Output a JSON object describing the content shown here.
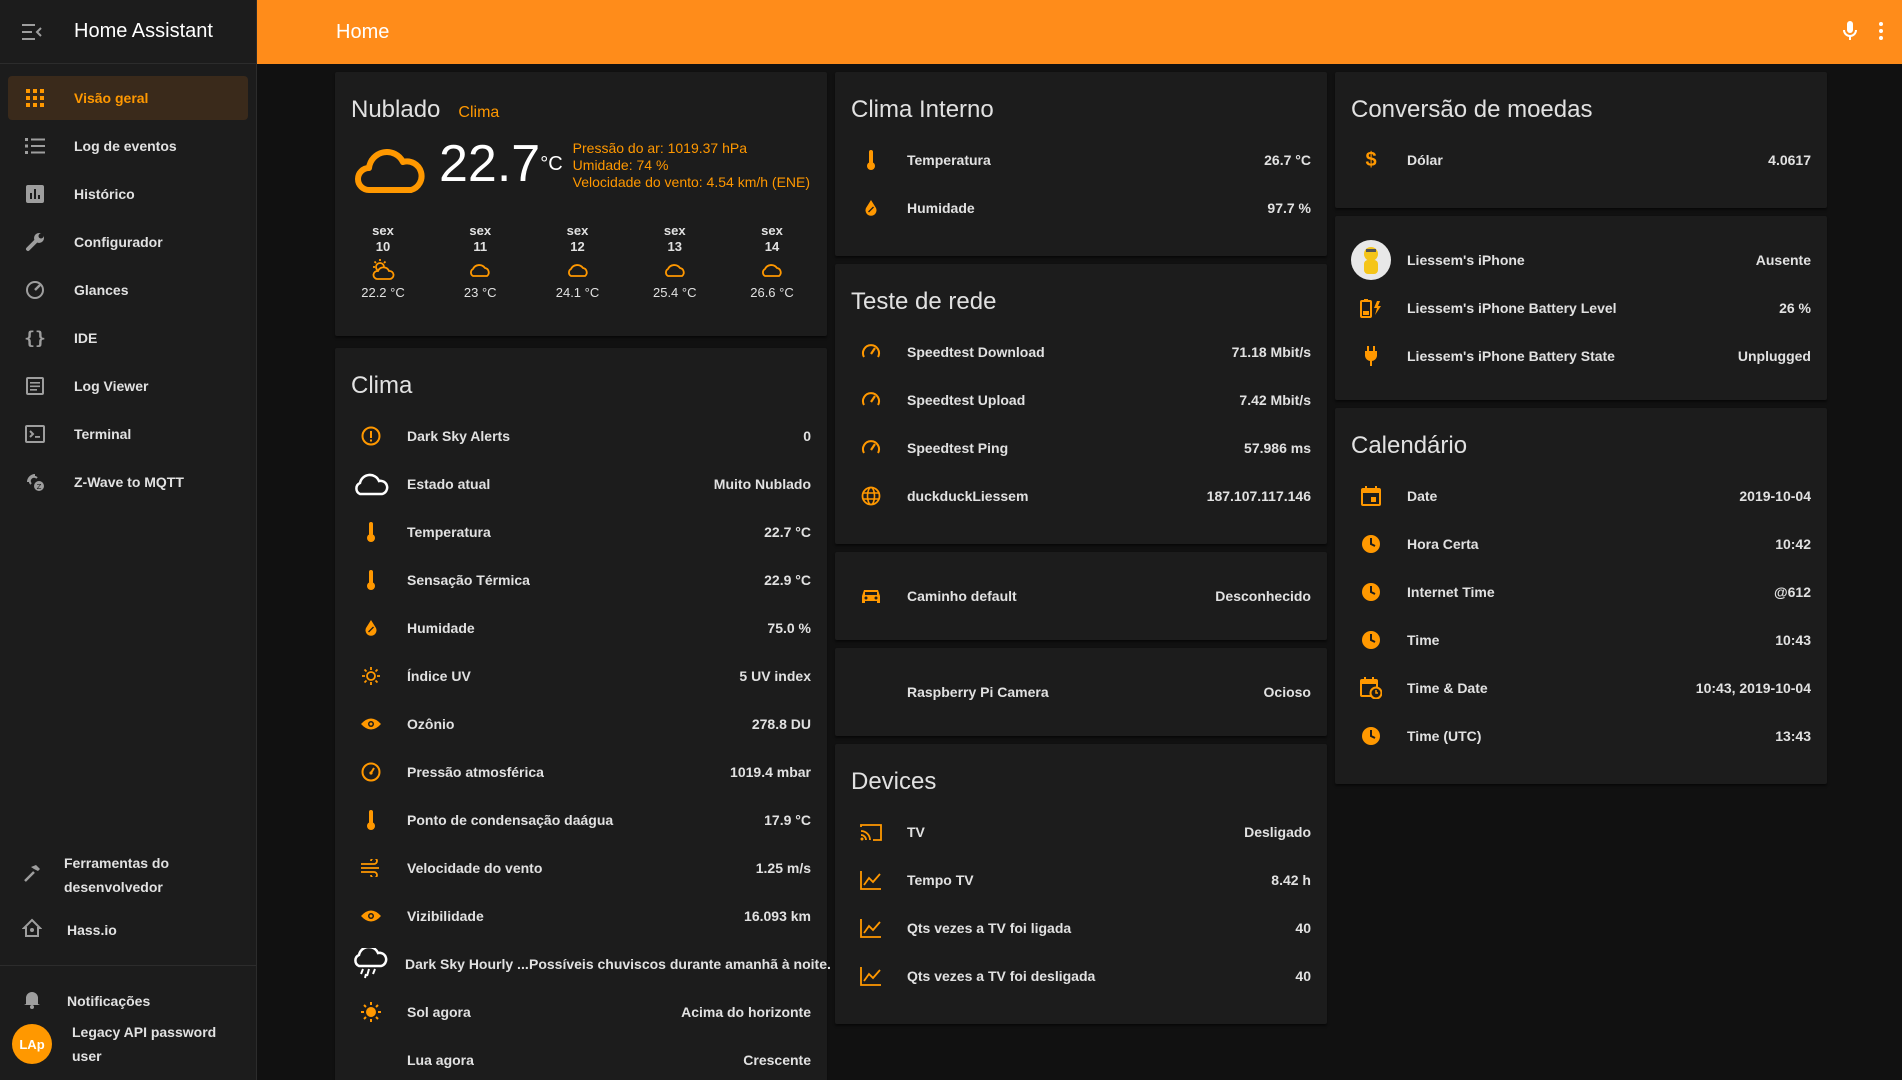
{
  "app": {
    "title": "Home Assistant"
  },
  "topbar": {
    "title": "Home"
  },
  "sidebar": {
    "items": [
      {
        "label": "Visão geral",
        "icon": "view-dashboard-icon"
      },
      {
        "label": "Log de eventos",
        "icon": "format-list-bulleted-icon"
      },
      {
        "label": "Histórico",
        "icon": "chart-box-icon"
      },
      {
        "label": "Configurador",
        "icon": "wrench-icon"
      },
      {
        "label": "Glances",
        "icon": "speedometer-icon"
      },
      {
        "label": "IDE",
        "icon": "code-braces-icon"
      },
      {
        "label": "Log Viewer",
        "icon": "file-document-icon"
      },
      {
        "label": "Terminal",
        "icon": "console-icon"
      },
      {
        "label": "Z-Wave to MQTT",
        "icon": "z-wave-icon"
      }
    ],
    "dev_tools": "Ferramentas do desenvolvedor",
    "hassio": "Hass.io",
    "notifications": "Notificações",
    "user_initials": "LAp",
    "user_name": "Legacy API password user"
  },
  "weather": {
    "condition": "Nublado",
    "name": "Clima",
    "temperature": "22.7",
    "unit": "°C",
    "pressure": "Pressão do ar: 1019.37 hPa",
    "humidity": "Umidade: 74 %",
    "wind": "Velocidade do vento: 4.54 km/h (ENE)",
    "forecast": [
      {
        "day": "sex",
        "date": "10",
        "temp": "22.2 °C",
        "icon": "weather-partly-cloudy-icon"
      },
      {
        "day": "sex",
        "date": "11",
        "temp": "23 °C",
        "icon": "weather-cloudy-icon"
      },
      {
        "day": "sex",
        "date": "12",
        "temp": "24.1 °C",
        "icon": "weather-cloudy-icon"
      },
      {
        "day": "sex",
        "date": "13",
        "temp": "25.4 °C",
        "icon": "weather-cloudy-icon"
      },
      {
        "day": "sex",
        "date": "14",
        "temp": "26.6 °C",
        "icon": "weather-cloudy-icon"
      }
    ]
  },
  "clima": {
    "title": "Clima",
    "rows": [
      {
        "name": "Dark Sky Alerts",
        "value": "0"
      },
      {
        "name": "Estado atual",
        "value": "Muito Nublado"
      },
      {
        "name": "Temperatura",
        "value": "22.7 °C"
      },
      {
        "name": "Sensação Térmica",
        "value": "22.9 °C"
      },
      {
        "name": "Humidade",
        "value": "75.0 %"
      },
      {
        "name": "Índice UV",
        "value": "5 UV index"
      },
      {
        "name": "Ozônio",
        "value": "278.8 DU"
      },
      {
        "name": "Pressão atmosférica",
        "value": "1019.4 mbar"
      },
      {
        "name": "Ponto de condensação daágua",
        "value": "17.9 °C"
      },
      {
        "name": "Velocidade do vento",
        "value": "1.25 m/s"
      },
      {
        "name": "Vizibilidade",
        "value": "16.093 km"
      },
      {
        "name": "Dark Sky Hourly ...",
        "value": "Possíveis chuviscos durante amanhã à noite."
      },
      {
        "name": "Sol agora",
        "value": "Acima do horizonte"
      },
      {
        "name": "Lua agora",
        "value": "Crescente"
      }
    ]
  },
  "clima_interno": {
    "title": "Clima Interno",
    "rows": [
      {
        "name": "Temperatura",
        "value": "26.7 °C"
      },
      {
        "name": "Humidade",
        "value": "97.7 %"
      }
    ]
  },
  "teste_rede": {
    "title": "Teste de rede",
    "rows": [
      {
        "name": "Speedtest Download",
        "value": "71.18 Mbit/s"
      },
      {
        "name": "Speedtest Upload",
        "value": "7.42 Mbit/s"
      },
      {
        "name": "Speedtest Ping",
        "value": "57.986 ms"
      },
      {
        "name": "duckduckLiessem",
        "value": "187.107.117.146"
      }
    ]
  },
  "caminho": {
    "name": "Caminho default",
    "value": "Desconhecido"
  },
  "camera": {
    "name": "Raspberry Pi Camera",
    "value": "Ocioso"
  },
  "devices": {
    "title": "Devices",
    "rows": [
      {
        "name": "TV",
        "value": "Desligado"
      },
      {
        "name": "Tempo TV",
        "value": "8.42 h"
      },
      {
        "name": "Qts vezes a TV foi ligada",
        "value": "40"
      },
      {
        "name": "Qts vezes a TV foi desligada",
        "value": "40"
      }
    ]
  },
  "moedas": {
    "title": "Conversão de moedas",
    "rows": [
      {
        "name": "Dólar",
        "value": "4.0617"
      }
    ]
  },
  "iphone": {
    "rows": [
      {
        "name": "Liessem's iPhone",
        "value": "Ausente"
      },
      {
        "name": "Liessem's iPhone Battery Level",
        "value": "26 %"
      },
      {
        "name": "Liessem's iPhone Battery State",
        "value": "Unplugged"
      }
    ]
  },
  "calendario": {
    "title": "Calendário",
    "rows": [
      {
        "name": "Date",
        "value": "2019-10-04"
      },
      {
        "name": "Hora Certa",
        "value": "10:42"
      },
      {
        "name": "Internet Time",
        "value": "@612"
      },
      {
        "name": "Time",
        "value": "10:43"
      },
      {
        "name": "Time & Date",
        "value": "10:43, 2019-10-04"
      },
      {
        "name": "Time (UTC)",
        "value": "13:43"
      }
    ]
  },
  "colors": {
    "accent": "#ff9800",
    "header": "#ff8c1a",
    "card": "#1c1c1c",
    "background": "#111111"
  }
}
